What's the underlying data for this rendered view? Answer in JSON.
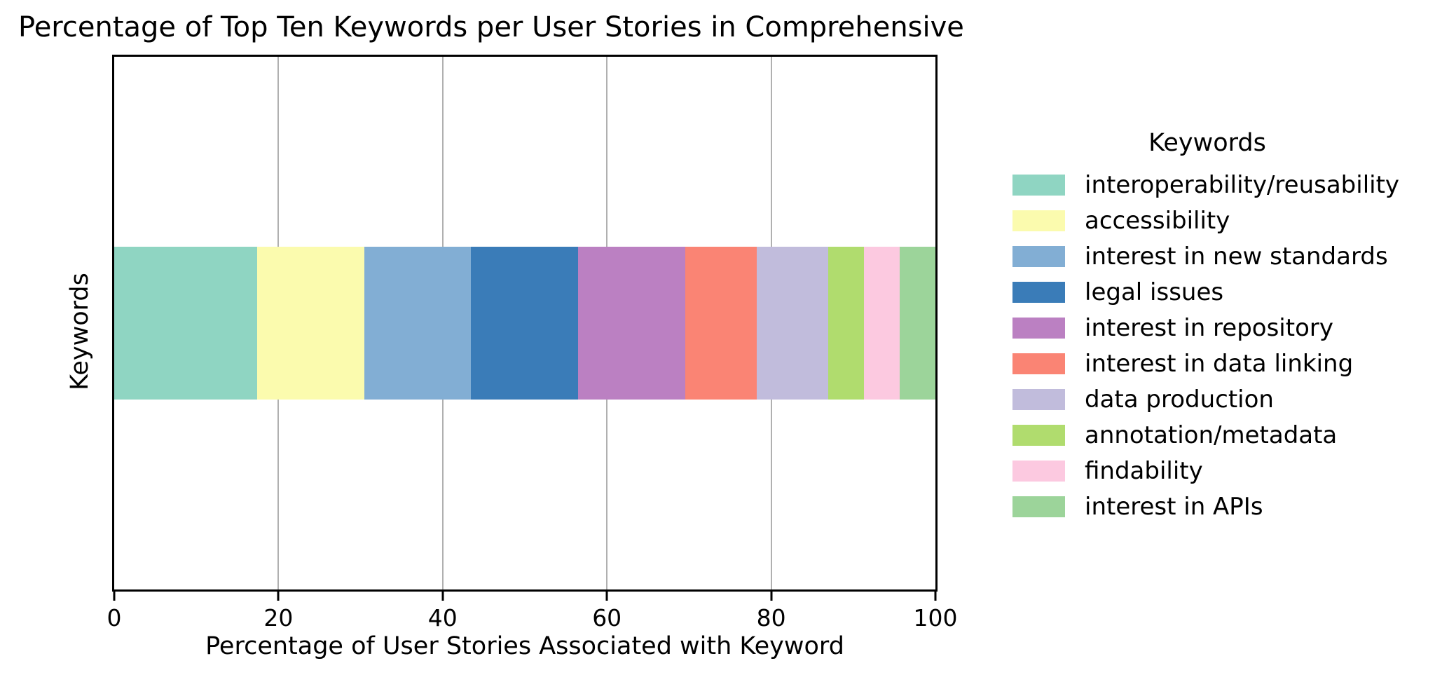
{
  "chart_data": {
    "type": "bar",
    "orientation": "horizontal",
    "stacked": true,
    "title": "Percentage of Top Ten Keywords per User Stories in Comprehensive",
    "xlabel": "Percentage of User Stories Associated with Keyword",
    "ylabel": "Keywords",
    "bar_category": "Keywords",
    "xlim": [
      0,
      100
    ],
    "x_ticks": [
      "0",
      "20",
      "40",
      "60",
      "80",
      "100"
    ],
    "grid": "vertical gridlines at interior ticks, drawn behind bar",
    "gridline_color": "#b0b0b0",
    "legend": {
      "title": "Keywords",
      "position": "right of plot"
    },
    "series": [
      {
        "name": "interoperability/reusability",
        "value": 17.39,
        "color": "#8fd5c2"
      },
      {
        "name": "accessibility",
        "value": 13.04,
        "color": "#fbfbae"
      },
      {
        "name": "interest in new standards",
        "value": 13.04,
        "color": "#82aed4"
      },
      {
        "name": "legal issues",
        "value": 13.04,
        "color": "#3a7cb8"
      },
      {
        "name": "interest in repository",
        "value": 13.04,
        "color": "#bb80c2"
      },
      {
        "name": "interest in data linking",
        "value": 8.7,
        "color": "#fa8474"
      },
      {
        "name": "data production",
        "value": 8.7,
        "color": "#c1bcdc"
      },
      {
        "name": "annotation/metadata",
        "value": 4.35,
        "color": "#b0dc6e"
      },
      {
        "name": "findability",
        "value": 4.35,
        "color": "#fcc9e0"
      },
      {
        "name": "interest in APIs",
        "value": 4.35,
        "color": "#9cd49a"
      }
    ]
  }
}
